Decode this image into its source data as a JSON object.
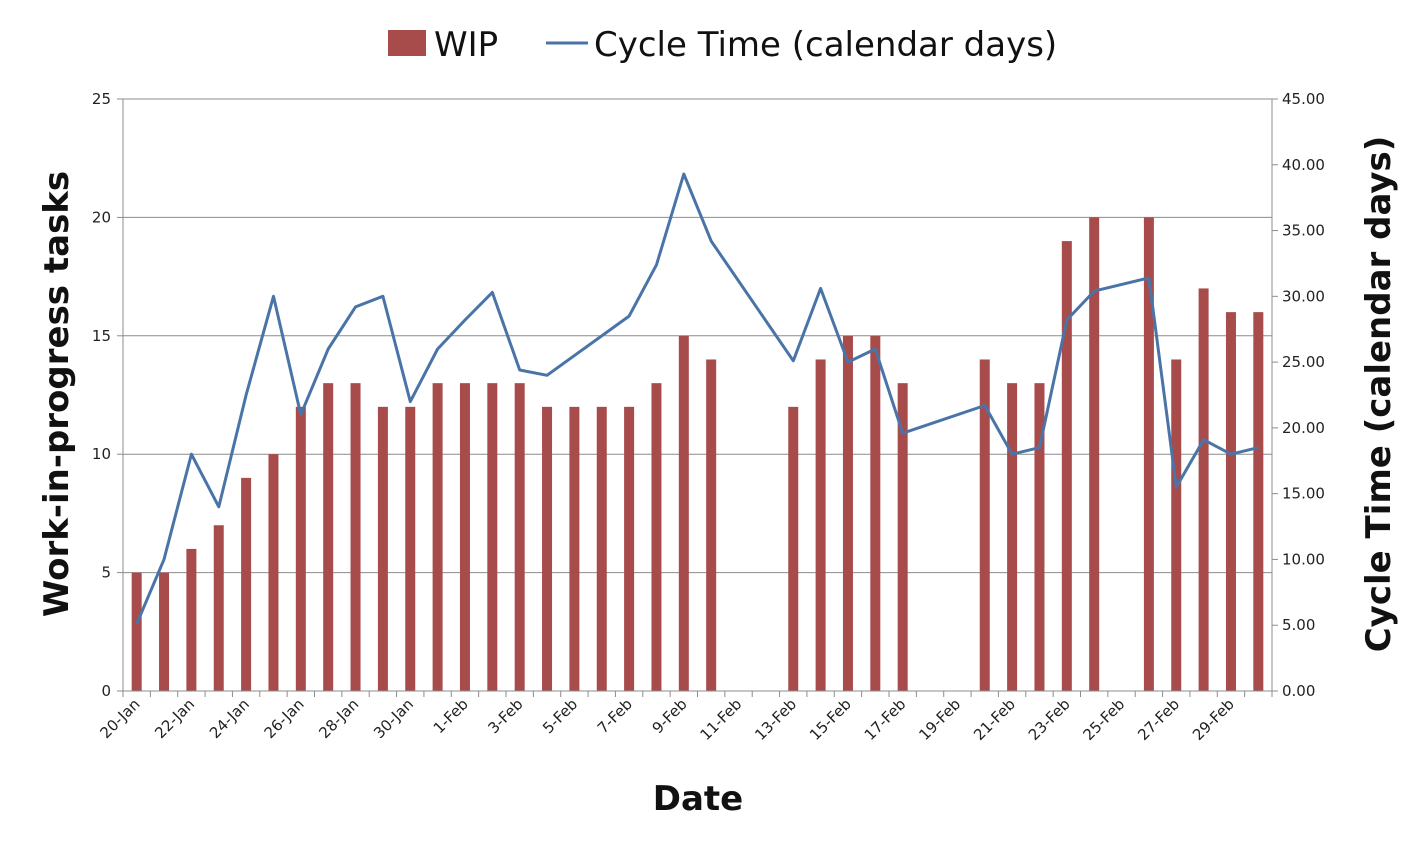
{
  "chart_data": {
    "type": "bar",
    "title": "",
    "xlabel": "Date",
    "ylabel": "Work-in-progress tasks",
    "y2label": "Cycle Time (calendar days)",
    "ylim": [
      0,
      25
    ],
    "y2lim": [
      0,
      45
    ],
    "yticks": [
      "0",
      "5",
      "10",
      "15",
      "20",
      "25"
    ],
    "y2ticks": [
      "0.00",
      "5.00",
      "10.00",
      "15.00",
      "20.00",
      "25.00",
      "30.00",
      "35.00",
      "40.00",
      "45.00"
    ],
    "grid": true,
    "legend_position": "top",
    "categories": [
      "20-Jan",
      "21-Jan",
      "22-Jan",
      "23-Jan",
      "24-Jan",
      "25-Jan",
      "26-Jan",
      "27-Jan",
      "28-Jan",
      "29-Jan",
      "30-Jan",
      "31-Jan",
      "1-Feb",
      "2-Feb",
      "3-Feb",
      "4-Feb",
      "5-Feb",
      "6-Feb",
      "7-Feb",
      "8-Feb",
      "9-Feb",
      "10-Feb",
      "11-Feb",
      "12-Feb",
      "13-Feb",
      "14-Feb",
      "15-Feb",
      "16-Feb",
      "17-Feb",
      "18-Feb",
      "19-Feb",
      "20-Feb",
      "21-Feb",
      "22-Feb",
      "23-Feb",
      "24-Feb",
      "25-Feb",
      "26-Feb",
      "27-Feb",
      "28-Feb",
      "29-Feb",
      "1-Mar"
    ],
    "x_tick_labels": [
      "20-Jan",
      "22-Jan",
      "24-Jan",
      "26-Jan",
      "28-Jan",
      "30-Jan",
      "1-Feb",
      "3-Feb",
      "5-Feb",
      "7-Feb",
      "9-Feb",
      "11-Feb",
      "13-Feb",
      "15-Feb",
      "17-Feb",
      "19-Feb",
      "21-Feb",
      "23-Feb",
      "25-Feb",
      "27-Feb",
      "29-Feb"
    ],
    "series": [
      {
        "name": "WIP",
        "type": "bar",
        "axis": "left",
        "color": "#a84b4b",
        "values": [
          5,
          5,
          6,
          7,
          9,
          10,
          12,
          13,
          13,
          12,
          12,
          13,
          13,
          13,
          13,
          12,
          12,
          12,
          12,
          13,
          15,
          14,
          null,
          null,
          12,
          14,
          15,
          15,
          13,
          null,
          null,
          14,
          13,
          13,
          19,
          20,
          null,
          20,
          14,
          17,
          16,
          16
        ]
      },
      {
        "name": "Cycle Time (calendar days)",
        "type": "line",
        "axis": "right",
        "color": "#4a74a8",
        "values": [
          5.1,
          10.0,
          18.0,
          14.0,
          22.5,
          30.0,
          21.0,
          26.0,
          29.2,
          30.0,
          22.0,
          26.0,
          28.2,
          30.3,
          24.4,
          24.0,
          null,
          null,
          28.5,
          32.4,
          39.3,
          34.2,
          null,
          null,
          25.1,
          30.6,
          25.0,
          26.0,
          19.6,
          null,
          null,
          21.7,
          18.0,
          18.5,
          28.2,
          30.4,
          null,
          31.4,
          15.5,
          19.1,
          18.0,
          18.5
        ]
      }
    ]
  }
}
